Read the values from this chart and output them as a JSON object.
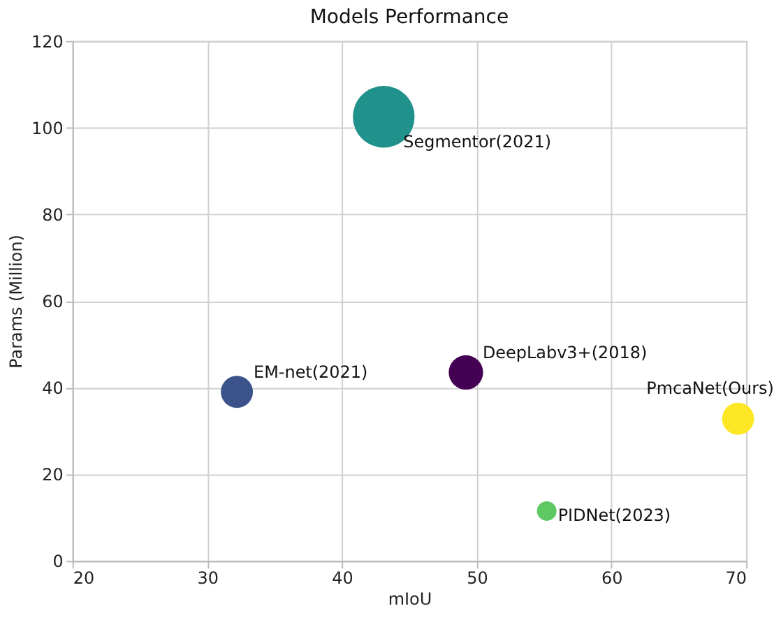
{
  "chart_data": {
    "type": "bubble",
    "title": "Models Performance",
    "xlabel": "mIoU",
    "ylabel": "Params (Million)",
    "xlim": [
      20,
      70
    ],
    "xticks": [
      20,
      30,
      40,
      50,
      60,
      70
    ],
    "ylim": [
      0,
      120
    ],
    "yticks": [
      0,
      20,
      40,
      60,
      80,
      100,
      120
    ],
    "grid": true,
    "series": [
      {
        "name": "DeepLabv3+(2018)",
        "color": "#440154",
        "x": [
          49.2
        ],
        "values": [
          43.5
        ],
        "sizes": [
          0.31
        ]
      },
      {
        "name": "EM-net(2021)",
        "color": "#3b528b",
        "x": [
          32.2
        ],
        "values": [
          39
        ],
        "sizes": [
          0.27
        ]
      },
      {
        "name": "Segmentor(2021)",
        "color": "#21918c",
        "x": [
          43.1
        ],
        "values": [
          102.5
        ],
        "sizes": [
          1
        ]
      },
      {
        "name": "PIDNet(2023)",
        "color": "#5ec962",
        "x": [
          55.2
        ],
        "values": [
          11.5
        ],
        "sizes": [
          0.1
        ]
      },
      {
        "name": "PmcaNet(Ours)",
        "color": "#fde725",
        "x": [
          69.4
        ],
        "values": [
          32.8
        ],
        "sizes": [
          0.27
        ]
      }
    ]
  }
}
